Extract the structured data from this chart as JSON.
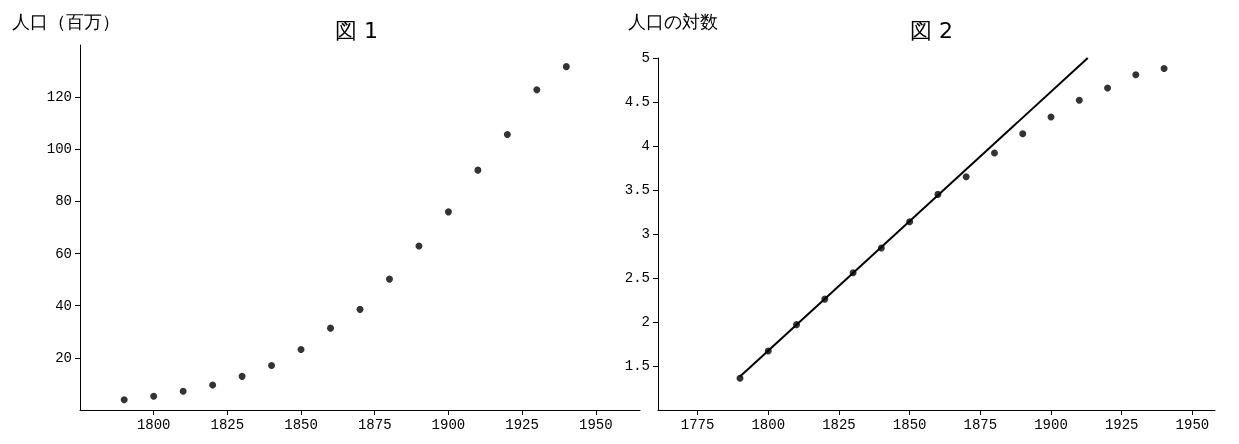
{
  "chart_data": [
    {
      "type": "scatter",
      "title": "図 1",
      "ylabel": "人口（百万）",
      "marker": "circle",
      "grid": false,
      "xlim": [
        1775,
        1965
      ],
      "xticks": [
        1800,
        1825,
        1850,
        1875,
        1900,
        1925,
        1950
      ],
      "ylim": [
        0,
        140
      ],
      "yticks": [
        20,
        40,
        60,
        80,
        100,
        120
      ],
      "series": [
        {
          "color": "#000000",
          "x": [
            1790,
            1800,
            1810,
            1820,
            1830,
            1840,
            1850,
            1860,
            1870,
            1880,
            1890,
            1900,
            1910,
            1920,
            1930,
            1940
          ],
          "values": [
            3.9,
            5.3,
            7.2,
            9.6,
            12.9,
            17.1,
            23.2,
            31.4,
            38.6,
            50.2,
            62.9,
            76.0,
            92.0,
            105.7,
            122.8,
            131.7
          ]
        }
      ]
    },
    {
      "type": "scatter",
      "title": "図 2",
      "ylabel": "人口の対数",
      "marker": "circle",
      "grid": false,
      "xlim": [
        1761,
        1958
      ],
      "xticks": [
        1775,
        1800,
        1825,
        1850,
        1875,
        1900,
        1925,
        1950
      ],
      "ylim": [
        1,
        5
      ],
      "yticks": [
        1.5,
        2,
        2.5,
        3,
        3.5,
        4,
        4.5,
        5
      ],
      "series": [
        {
          "color": "#000000",
          "x": [
            1790,
            1800,
            1810,
            1820,
            1830,
            1840,
            1850,
            1860,
            1870,
            1880,
            1890,
            1900,
            1910,
            1920,
            1930,
            1940
          ],
          "values": [
            1.36,
            1.67,
            1.97,
            2.26,
            2.56,
            2.84,
            3.14,
            3.45,
            3.65,
            3.92,
            4.14,
            4.33,
            4.52,
            4.66,
            4.81,
            4.88
          ]
        },
        {
          "type": "line",
          "marker": "none",
          "color": "#000000",
          "x": [
            1790,
            1913
          ],
          "values": [
            1.38,
            5.0
          ]
        }
      ]
    }
  ]
}
